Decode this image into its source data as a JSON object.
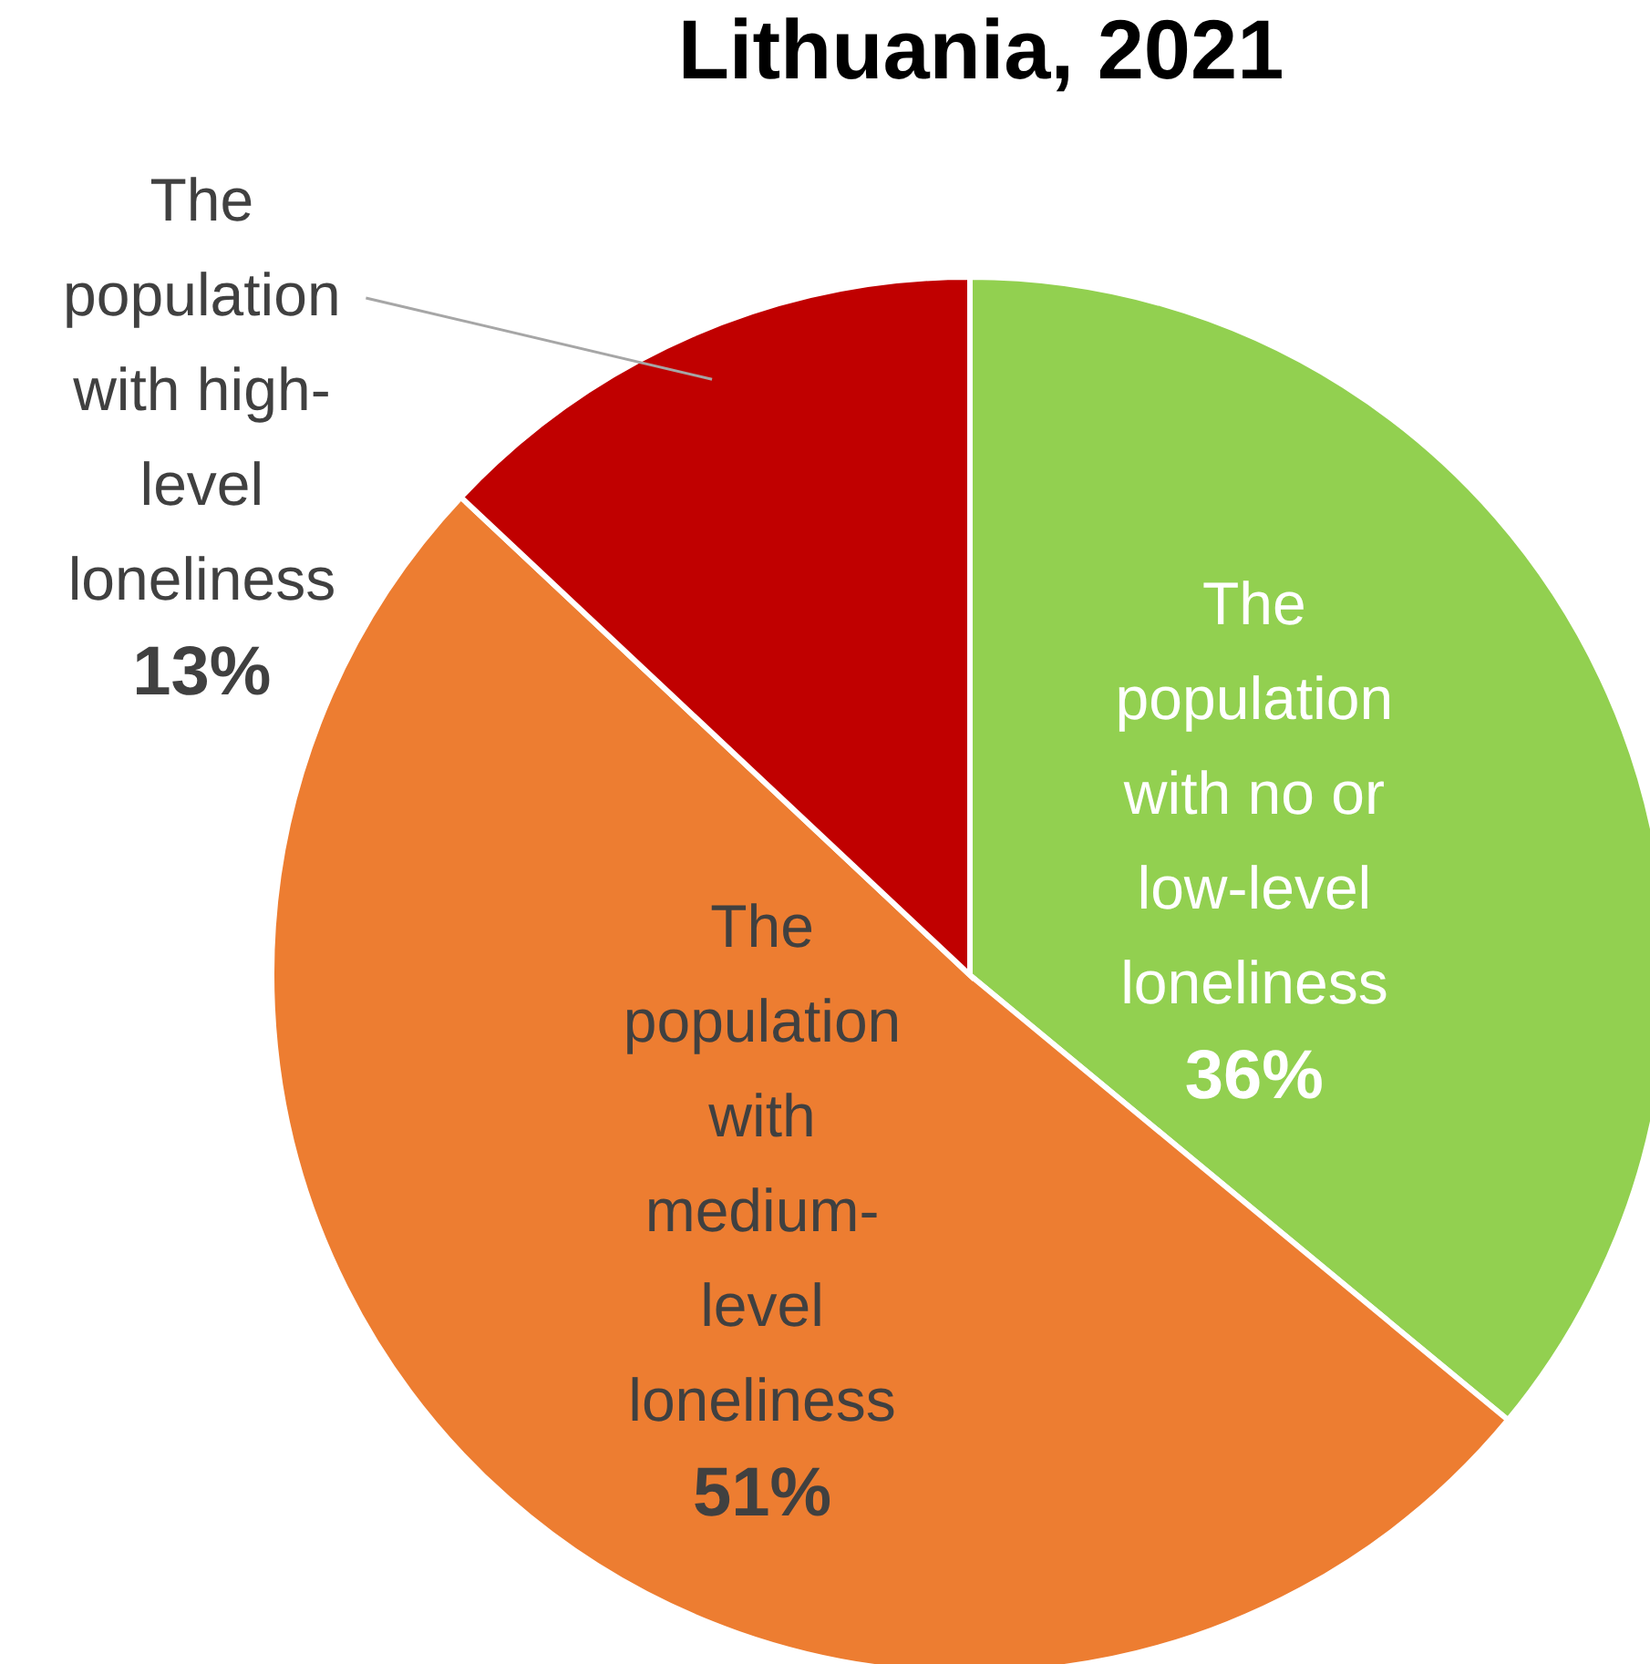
{
  "chart_data": {
    "type": "pie",
    "title": "Lithuania, 2021",
    "categories": [
      "The population with no or low-level loneliness",
      "The population with medium-level loneliness",
      "The population with high-level loneliness"
    ],
    "values": [
      36,
      51,
      13
    ],
    "colors": [
      "#92d050",
      "#ed7d31",
      "#c00000"
    ],
    "value_labels": [
      "36%",
      "51%",
      "13%"
    ],
    "legend": false
  }
}
